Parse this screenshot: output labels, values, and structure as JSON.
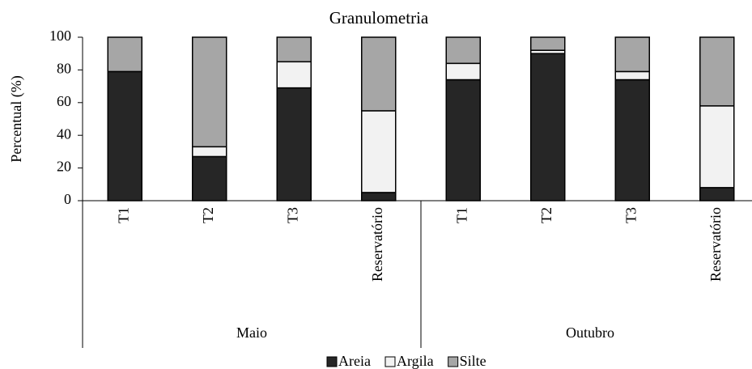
{
  "chart_data": {
    "type": "bar",
    "stacked": true,
    "title": "Granulometria",
    "ylabel": "Percentual (%)",
    "categories": [
      "T1",
      "T2",
      "T3",
      "Reservatório",
      "T1",
      "T2",
      "T3",
      "Reservatório"
    ],
    "groups": [
      "Maio",
      "Outubro"
    ],
    "series": [
      {
        "name": "Areia",
        "color": "#262626",
        "values": [
          79,
          27,
          69,
          5,
          74,
          90,
          74,
          8
        ]
      },
      {
        "name": "Argila",
        "color": "#f2f2f2",
        "values": [
          0,
          6,
          16,
          50,
          10,
          2,
          5,
          50
        ]
      },
      {
        "name": "Silte",
        "color": "#a6a6a6",
        "values": [
          21,
          67,
          15,
          45,
          16,
          8,
          21,
          42
        ]
      }
    ],
    "ylim": [
      0,
      100
    ],
    "yticks": [
      0,
      20,
      40,
      60,
      80,
      100
    ],
    "legend": "bottom"
  }
}
